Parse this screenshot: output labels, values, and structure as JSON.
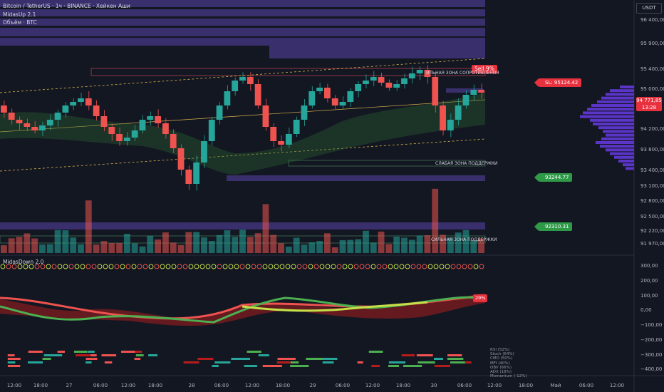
{
  "header": {
    "symbol_line": "Bitcoin / TetherUS · 1ч · BINANCE · Хейкен Аши",
    "indicator_1": "MidasUp 2.1",
    "indicator_2": "Объём · BTC",
    "currency": "USDT"
  },
  "price_axis": {
    "labels": [
      "96 400,00",
      "95 900,00",
      "95 400,00",
      "95 000,00",
      "94 200,00",
      "93 800,00",
      "93 400,00",
      "93 100,00",
      "92 800,00",
      "92 500,00",
      "92 220,00",
      "91 970,00"
    ]
  },
  "price_tags": {
    "sl": "SL: 95124.42",
    "entry": "93244.77",
    "target": "92310.31",
    "current_price": "94 771,85",
    "countdown": "13:28"
  },
  "annotations": {
    "sell_label": "Sell 9%",
    "strong_resistance": "ИЛЬНАЯ ЗОНА СОПРОТИВЛЕНИЯ",
    "weak_support": "СЛАБАЯ ЗОНА ПОДДЕРЖКИ",
    "strong_support": "СИЛЬНАЯ ЗОНА ПОДДЕРЖКИ"
  },
  "oscillator": {
    "title": "MidasDown 2.0",
    "badge": "29%",
    "axis_labels": [
      "300,00",
      "200,00",
      "100,00",
      "0,00",
      "−100,00",
      "−200,00",
      "−300,00",
      "−400,00"
    ],
    "legend": [
      "RSI (52%)",
      "Stoch (64%)",
      "CMO (50%)",
      "MFI (40%)",
      "OBV (66%)",
      "ADX (18%)",
      "Momentum (-12%)"
    ]
  },
  "time_axis": {
    "labels": [
      "12:00",
      "18:00",
      "27",
      "06:00",
      "12:00",
      "18:00",
      "28",
      "06:00",
      "12:00",
      "18:00",
      "29",
      "06:00",
      "12:00",
      "18:00",
      "30",
      "06:00",
      "12:00",
      "18:00",
      "Май",
      "06:00",
      "12:00"
    ]
  },
  "colors": {
    "background": "#131722",
    "bull": "#26a69a",
    "bear": "#ef5350",
    "zone": "#4a3a8c",
    "tag_red": "#e8313f",
    "tag_green": "#2e9a48"
  }
}
